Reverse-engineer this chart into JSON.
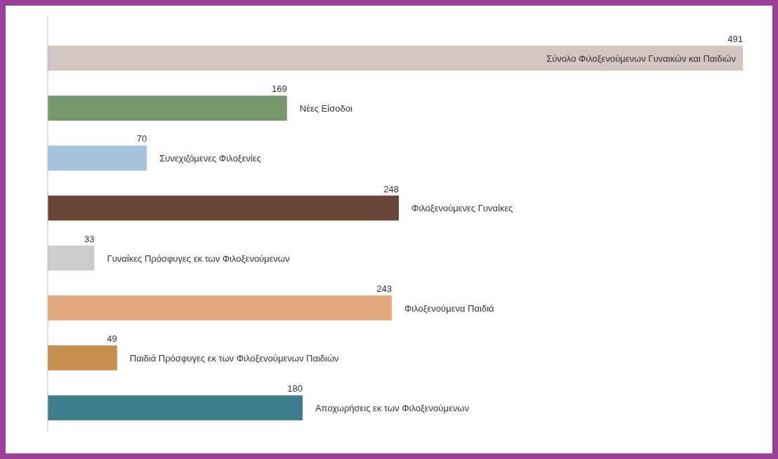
{
  "chart_data": {
    "type": "bar",
    "orientation": "horizontal",
    "data_labels": true,
    "categories": [
      "Σύνολο Φιλοξενούμενων Γυναικών και Παιδιών",
      "Νέες Είσοδοι",
      "Συνεχιζόμενες Φιλοξενίες",
      "Φιλοξενούμενες Γυναίκες",
      "Γυναίκες Πρόσφυγες εκ των Φιλοξενούμενων",
      "Φιλοξενούμενα Παιδιά",
      "Παιδιά Πρόσφυγες εκ των Φιλοξενούμενων Παιδιών",
      "Αποχωρήσεις εκ των Φιλοξενούμενων"
    ],
    "values": [
      491,
      169,
      70,
      248,
      33,
      243,
      49,
      180
    ],
    "colors": [
      "#d3c5c0",
      "#75976c",
      "#a6c2de",
      "#6a4537",
      "#cbcdcd",
      "#e3a77c",
      "#c98f4f",
      "#3e7d8c"
    ],
    "tick_labels": false
  }
}
